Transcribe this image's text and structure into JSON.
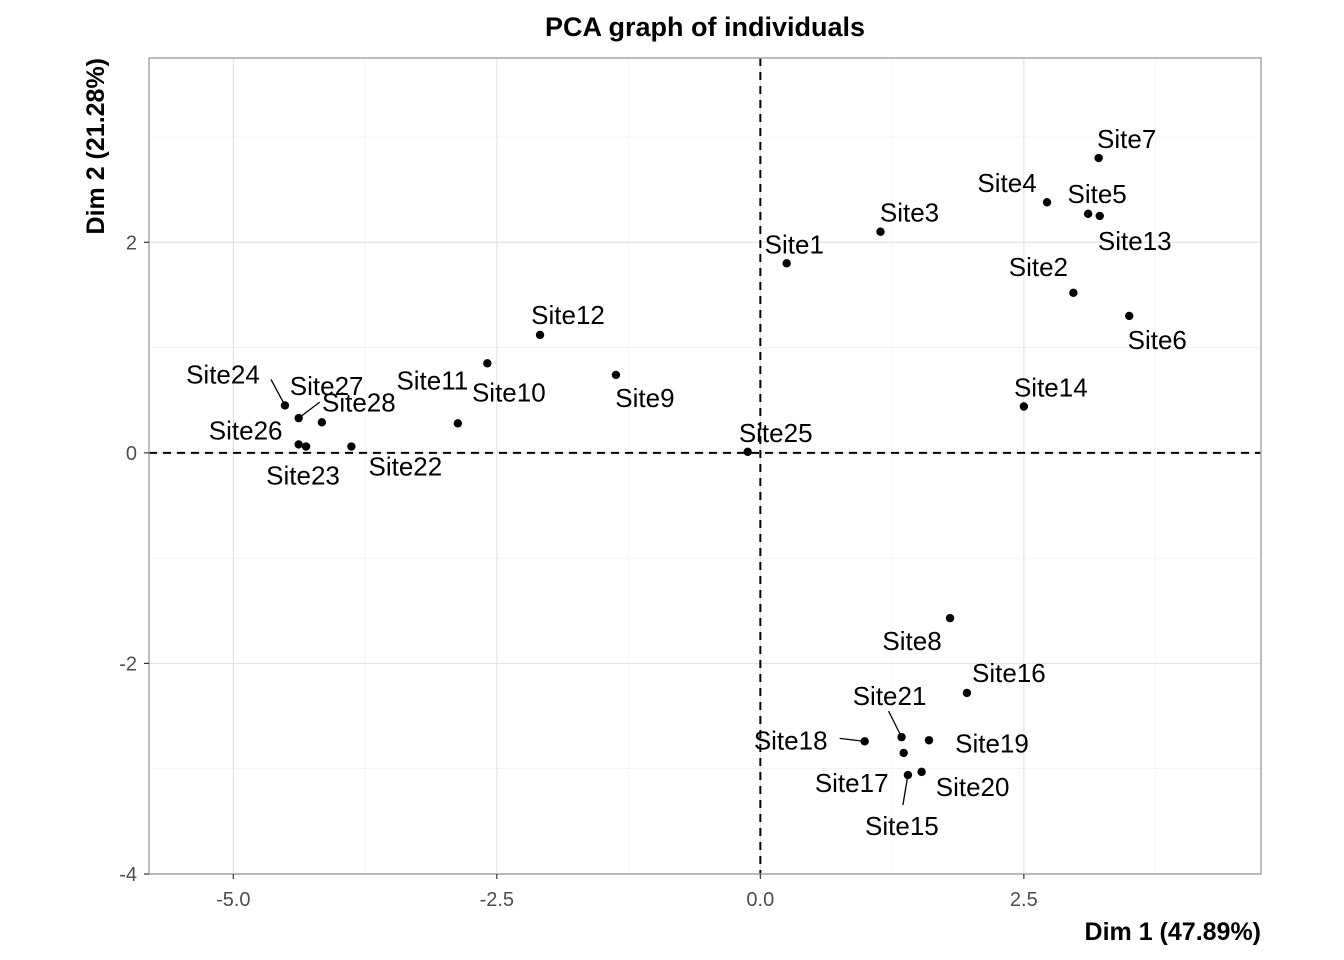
{
  "chart_data": {
    "type": "scatter",
    "title": "PCA graph of individuals",
    "xlabel": "Dim 1 (47.89%)",
    "ylabel": "Dim 2 (21.28%)",
    "xlim": [
      -5.8,
      4.75
    ],
    "ylim": [
      -4.0,
      3.75
    ],
    "xticks": [
      -5.0,
      -2.5,
      0.0,
      2.5
    ],
    "xtick_labels": [
      "-5.0",
      "-2.5",
      "0.0",
      "2.5"
    ],
    "yticks": [
      -4,
      -2,
      0,
      2
    ],
    "ytick_labels": [
      "-4",
      "-2",
      "0",
      "2"
    ],
    "grid": true,
    "reference_lines": {
      "x": 0,
      "y": 0,
      "style": "dashed"
    },
    "points": [
      {
        "label": "Site1",
        "x": 0.25,
        "y": 1.8
      },
      {
        "label": "Site2",
        "x": 2.97,
        "y": 1.52
      },
      {
        "label": "Site3",
        "x": 1.14,
        "y": 2.1
      },
      {
        "label": "Site4",
        "x": 2.72,
        "y": 2.38
      },
      {
        "label": "Site5",
        "x": 3.11,
        "y": 2.27
      },
      {
        "label": "Site6",
        "x": 3.5,
        "y": 1.3
      },
      {
        "label": "Site7",
        "x": 3.21,
        "y": 2.8
      },
      {
        "label": "Site8",
        "x": 1.8,
        "y": -1.57
      },
      {
        "label": "Site9",
        "x": -1.37,
        "y": 0.74
      },
      {
        "label": "Site10",
        "x": -2.87,
        "y": 0.28
      },
      {
        "label": "Site11",
        "x": -2.59,
        "y": 0.85
      },
      {
        "label": "Site12",
        "x": -2.09,
        "y": 1.12
      },
      {
        "label": "Site13",
        "x": 3.22,
        "y": 2.25
      },
      {
        "label": "Site14",
        "x": 2.5,
        "y": 0.44
      },
      {
        "label": "Site15",
        "x": 1.4,
        "y": -3.06
      },
      {
        "label": "Site16",
        "x": 1.96,
        "y": -2.28
      },
      {
        "label": "Site17",
        "x": 1.36,
        "y": -2.85
      },
      {
        "label": "Site18",
        "x": 0.99,
        "y": -2.74
      },
      {
        "label": "Site19",
        "x": 1.6,
        "y": -2.73
      },
      {
        "label": "Site20",
        "x": 1.53,
        "y": -3.03
      },
      {
        "label": "Site21",
        "x": 1.34,
        "y": -2.7
      },
      {
        "label": "Site22",
        "x": -3.88,
        "y": 0.06
      },
      {
        "label": "Site23",
        "x": -4.31,
        "y": 0.06
      },
      {
        "label": "Site24",
        "x": -4.51,
        "y": 0.45
      },
      {
        "label": "Site25",
        "x": -0.12,
        "y": 0.01
      },
      {
        "label": "Site26",
        "x": -4.38,
        "y": 0.08
      },
      {
        "label": "Site27",
        "x": -4.38,
        "y": 0.33
      },
      {
        "label": "Site28",
        "x": -4.16,
        "y": 0.29
      }
    ]
  }
}
